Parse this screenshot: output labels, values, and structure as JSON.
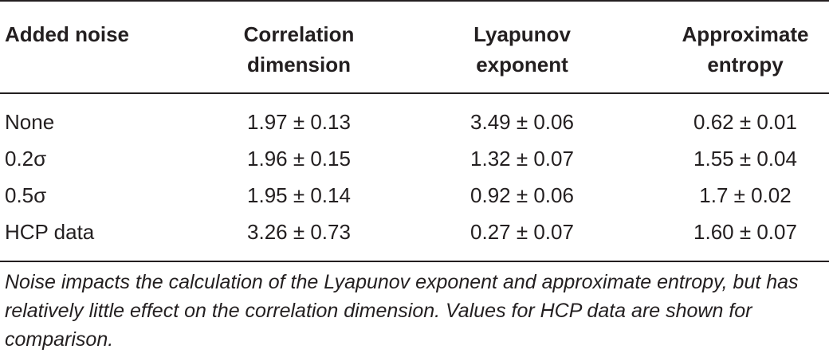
{
  "table": {
    "headers": [
      "Added noise",
      "Correlation\ndimension",
      "Lyapunov\nexponent",
      "Approximate\nentropy"
    ],
    "rows": [
      [
        "None",
        "1.97 ± 0.13",
        "3.49 ± 0.06",
        "0.62 ± 0.01"
      ],
      [
        "0.2σ",
        "1.96 ± 0.15",
        "1.32 ± 0.07",
        "1.55 ± 0.04"
      ],
      [
        "0.5σ",
        "1.95 ± 0.14",
        "0.92 ± 0.06",
        "1.7 ± 0.02"
      ],
      [
        "HCP data",
        "3.26 ± 0.73",
        "0.27 ± 0.07",
        "1.60 ± 0.07"
      ]
    ]
  },
  "caption": "Noise impacts the calculation of the Lyapunov exponent and approximate entropy, but has relatively little effect on the correlation dimension. Values for HCP data are shown for comparison."
}
